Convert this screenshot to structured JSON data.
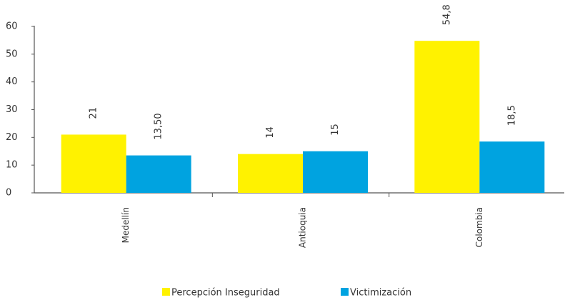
{
  "chart_data": {
    "type": "bar",
    "categories": [
      "Medellín",
      "Antioquia",
      "Colombia"
    ],
    "series": [
      {
        "name": "Percepción Inseguridad",
        "color": "#fff200",
        "values": [
          21,
          14,
          54.8
        ],
        "value_labels": [
          "21",
          "14",
          "54,8"
        ]
      },
      {
        "name": "Victimización",
        "color": "#00a3e0",
        "values": [
          13.5,
          15,
          18.5
        ],
        "value_labels": [
          "13,50",
          "15",
          "18,5"
        ]
      }
    ],
    "ylim": [
      0,
      60
    ],
    "yticks": [
      0,
      10,
      20,
      30,
      40,
      50,
      60
    ],
    "grid": false,
    "legend": "bottom"
  }
}
